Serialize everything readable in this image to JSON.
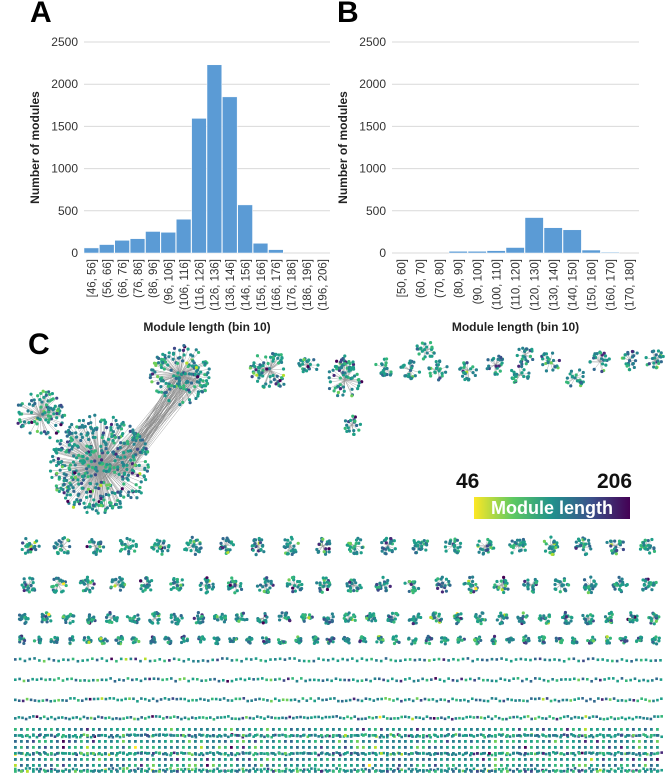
{
  "panels": {
    "a": "A",
    "b": "B",
    "c": "C"
  },
  "chart_data": [
    {
      "type": "bar",
      "panel": "A",
      "categories": [
        "[46, 56]",
        "(56, 66]",
        "(66, 76]",
        "(76, 86]",
        "(86, 96]",
        "(96, 106]",
        "(106, 116]",
        "(116, 126]",
        "(126, 136]",
        "(136, 146]",
        "(146, 156]",
        "(156, 166]",
        "(166, 176]",
        "(176, 186]",
        "(186, 196]",
        "(196, 206]"
      ],
      "values": [
        60,
        100,
        150,
        170,
        255,
        245,
        400,
        1595,
        2230,
        1850,
        570,
        115,
        40,
        0,
        0,
        0
      ],
      "xlabel": "Module length (bin 10)",
      "ylabel": "Number of modules",
      "ylim": [
        0,
        2500
      ],
      "yticks": [
        0,
        500,
        1000,
        1500,
        2000,
        2500
      ],
      "grid": true,
      "color": "#5b9bd5"
    },
    {
      "type": "bar",
      "panel": "B",
      "categories": [
        "[50, 60]",
        "(60, 70]",
        "(70, 80]",
        "(80, 90]",
        "(90, 100]",
        "(100, 110]",
        "(110, 120]",
        "(120, 130]",
        "(130, 140]",
        "(140, 150]",
        "(150, 160]",
        "(160, 170]",
        "(170, 180]"
      ],
      "values": [
        0,
        0,
        0,
        20,
        20,
        28,
        65,
        420,
        300,
        275,
        35,
        10,
        0
      ],
      "xlabel": "Module length (bin 10)",
      "ylabel": "Number of modules",
      "ylim": [
        0,
        2500
      ],
      "yticks": [
        0,
        500,
        1000,
        1500,
        2000,
        2500
      ],
      "grid": true,
      "color": "#5b9bd5"
    }
  ],
  "network": {
    "colorbar": {
      "min": "46",
      "max": "206",
      "title": "Module length",
      "colormap": "viridis-reversed"
    },
    "edge_color": "#888888"
  }
}
